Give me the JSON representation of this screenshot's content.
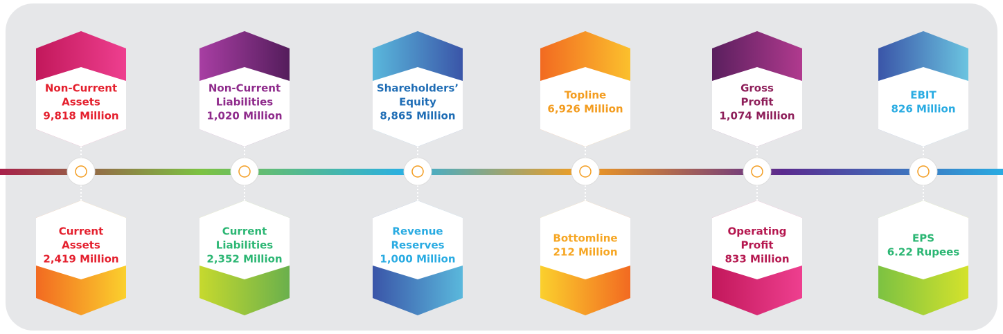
{
  "top": [
    {
      "label_lines": [
        "Non-Current",
        "Assets"
      ],
      "value": "9,818 Million",
      "color": "#e41f2d",
      "cap": [
        "#c2185b",
        "#ee3f8f"
      ]
    },
    {
      "label_lines": [
        "Non-Current",
        "Liabilities"
      ],
      "value": "1,020 Million",
      "color": "#8e2a8b",
      "cap": [
        "#a83ea3",
        "#541d5c"
      ]
    },
    {
      "label_lines": [
        "Shareholders’",
        "Equity"
      ],
      "value": "8,865 Million",
      "color": "#1f6db5",
      "cap": [
        "#5ab8dc",
        "#3a55a8"
      ]
    },
    {
      "label_lines": [
        "Topline"
      ],
      "value": "6,926 Million",
      "color": "#f39c1f",
      "cap": [
        "#f26a21",
        "#fbc02d"
      ]
    },
    {
      "label_lines": [
        "Gross",
        "Profit"
      ],
      "value": "1,074 Million",
      "color": "#8e1f5a",
      "cap": [
        "#5a1f5e",
        "#b03a8e"
      ]
    },
    {
      "label_lines": [
        "EBIT"
      ],
      "value": "826 Million",
      "color": "#29abe2",
      "cap": [
        "#3a55a8",
        "#6bc4e0"
      ]
    }
  ],
  "bottom": [
    {
      "label_lines": [
        "Current",
        "Assets"
      ],
      "value": "2,419 Million",
      "color": "#e41f2d",
      "cap": [
        "#f26a21",
        "#fbd02d"
      ]
    },
    {
      "label_lines": [
        "Current",
        "Liabilities"
      ],
      "value": "2,352 Million",
      "color": "#2bb673",
      "cap": [
        "#c6d92e",
        "#6ab04c"
      ]
    },
    {
      "label_lines": [
        "Revenue",
        "Reserves"
      ],
      "value": "1,000 Million",
      "color": "#29abe2",
      "cap": [
        "#3a55a8",
        "#5ab8dc"
      ]
    },
    {
      "label_lines": [
        "Bottomline"
      ],
      "value": "212 Million",
      "color": "#f6a623",
      "cap": [
        "#fbd02d",
        "#f26a21"
      ]
    },
    {
      "label_lines": [
        "Operating",
        "Profit"
      ],
      "value": "833 Million",
      "color": "#b5174f",
      "cap": [
        "#c2185b",
        "#ee3f8f"
      ]
    },
    {
      "label_lines": [
        "EPS"
      ],
      "value": "6.22 Rupees",
      "color": "#2bb673",
      "cap": [
        "#7cc242",
        "#d4e22c"
      ]
    }
  ]
}
